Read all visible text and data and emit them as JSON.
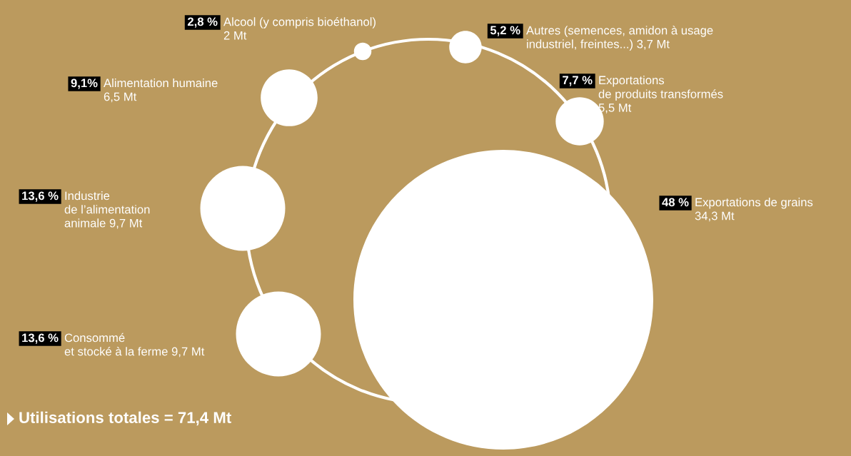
{
  "chart_data": {
    "type": "other",
    "title": "Utilisations totales = 71,4 Mt",
    "categories": [
      "Alcool (y compris bioéthanol)\n2 Mt",
      "Autres (semences, amidon à usage\nindustriel, freintes...) 3,7 Mt",
      "Alimentation humaine\n6,5 Mt",
      "Exportations\nde produits transformés\n5,5 Mt",
      "Industrie\nde l’alimentation\nanimale 9,7 Mt",
      "Exportations de grains\n34,3 Mt",
      "Consommé\net stocké à la ferme 9,7 Mt"
    ],
    "values": [
      2.8,
      5.2,
      9.1,
      7.7,
      13.6,
      48,
      13.6
    ],
    "value_labels": [
      "2,8 %",
      "5,2 %",
      "9,1%",
      "7,7 %",
      "13,6 %",
      "48 %",
      "13,6 %"
    ]
  }
}
